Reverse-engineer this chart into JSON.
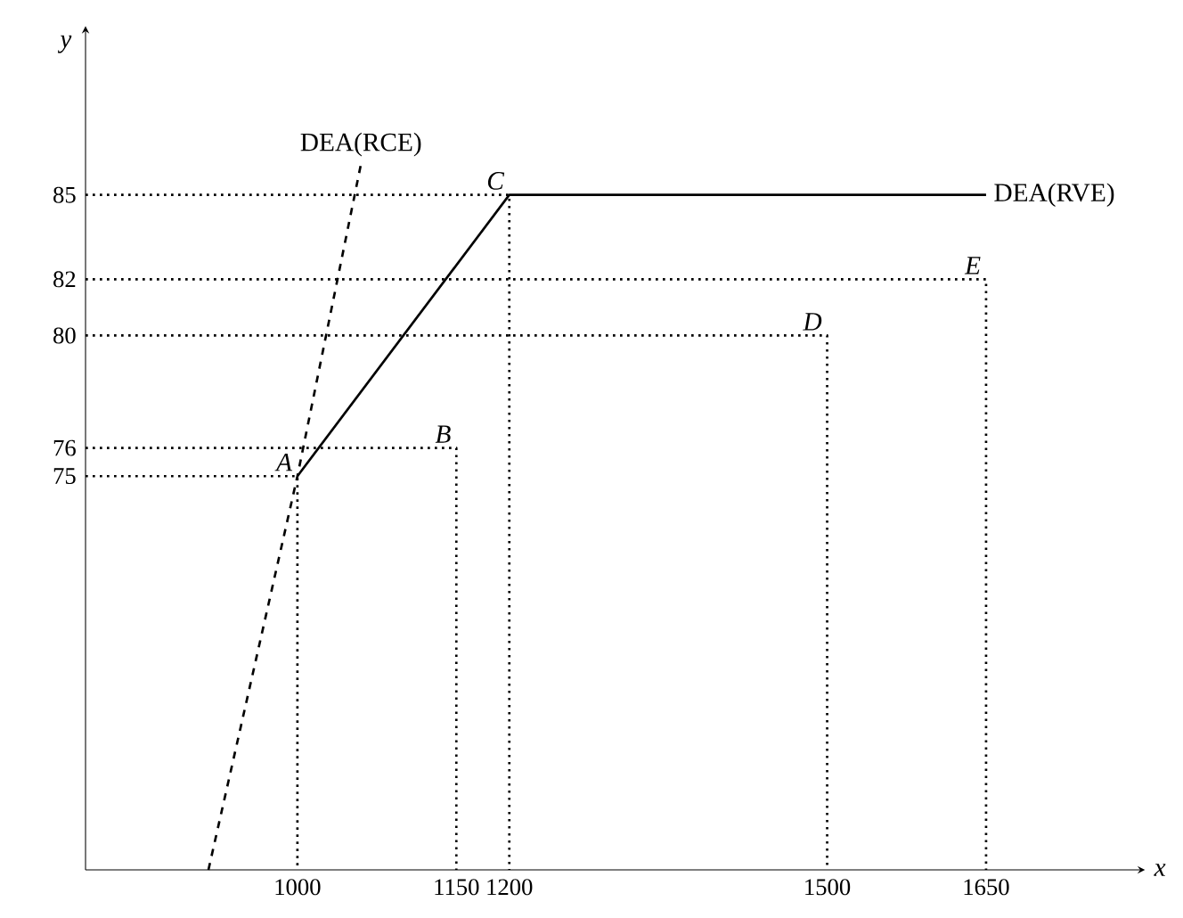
{
  "chart_data": {
    "type": "line",
    "xlabel": "x",
    "ylabel": "y",
    "xlim": [
      800,
      1800
    ],
    "ylim": [
      61,
      91
    ],
    "xticks": [
      1000,
      1150,
      1200,
      1500,
      1650
    ],
    "yticks": [
      75,
      76,
      80,
      82,
      85
    ],
    "grid": false,
    "marker": "none",
    "series": [
      {
        "name": "DEA(RVE)",
        "color": "#000000",
        "line_style": "solid",
        "x": [
          1000,
          1200,
          1650
        ],
        "values": [
          75,
          85,
          85
        ]
      },
      {
        "name": "DEA(RCE)",
        "color": "#000000",
        "line_style": "dashed",
        "x": [
          916,
          1000,
          1060
        ],
        "values": [
          61,
          75,
          86.1
        ]
      },
      {
        "color": "#000000",
        "line_style": "dotted",
        "x": [
          800,
          1000,
          1000
        ],
        "values": [
          75,
          75,
          61
        ]
      },
      {
        "color": "#000000",
        "line_style": "dotted",
        "x": [
          800,
          1150,
          1150
        ],
        "values": [
          76,
          76,
          61
        ]
      },
      {
        "color": "#000000",
        "line_style": "dotted",
        "x": [
          800,
          1200,
          1200
        ],
        "values": [
          85,
          85,
          61
        ]
      },
      {
        "color": "#000000",
        "line_style": "dotted",
        "x": [
          800,
          1500,
          1500
        ],
        "values": [
          80,
          80,
          61
        ]
      },
      {
        "color": "#000000",
        "line_style": "dotted",
        "x": [
          800,
          1650,
          1650
        ],
        "values": [
          82,
          82,
          61
        ]
      }
    ],
    "annotations": [
      {
        "text": "A",
        "x": 1000,
        "y": 75
      },
      {
        "text": "B",
        "x": 1150,
        "y": 76
      },
      {
        "text": "C",
        "x": 1200,
        "y": 85
      },
      {
        "text": "D",
        "x": 1500,
        "y": 80
      },
      {
        "text": "E",
        "x": 1650,
        "y": 82
      }
    ]
  }
}
